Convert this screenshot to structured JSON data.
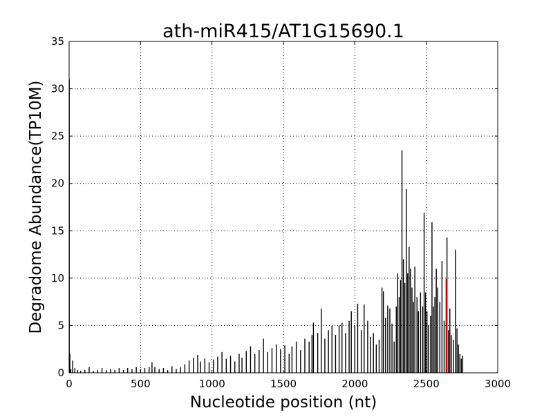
{
  "chart_data": {
    "type": "line",
    "title": "ath-miR415/AT1G15690.1",
    "xlabel": "Nucleotide position (nt)",
    "ylabel": "Degradome Abundance(TP10M)",
    "xlim": [
      0,
      3000
    ],
    "ylim": [
      0,
      35
    ],
    "xticks": [
      "0",
      "500",
      "1000",
      "1500",
      "2000",
      "2500",
      "3000"
    ],
    "yticks": [
      "0",
      "5",
      "10",
      "15",
      "20",
      "25",
      "30",
      "35"
    ],
    "grid": true,
    "series": [
      {
        "color": "#000000",
        "points": [
          [
            1,
            31.0
          ],
          [
            5,
            2.0
          ],
          [
            12,
            0.4
          ],
          [
            25,
            1.3
          ],
          [
            40,
            0.5
          ],
          [
            60,
            0.3
          ],
          [
            80,
            0.2
          ],
          [
            110,
            0.3
          ],
          [
            140,
            0.6
          ],
          [
            170,
            0.2
          ],
          [
            200,
            0.3
          ],
          [
            230,
            0.5
          ],
          [
            260,
            0.3
          ],
          [
            290,
            0.4
          ],
          [
            320,
            0.3
          ],
          [
            350,
            0.5
          ],
          [
            380,
            0.3
          ],
          [
            410,
            0.5
          ],
          [
            440,
            0.4
          ],
          [
            470,
            0.6
          ],
          [
            500,
            0.4
          ],
          [
            530,
            0.5
          ],
          [
            560,
            0.6
          ],
          [
            580,
            1.1
          ],
          [
            600,
            0.6
          ],
          [
            630,
            0.4
          ],
          [
            660,
            0.5
          ],
          [
            690,
            0.3
          ],
          [
            720,
            0.7
          ],
          [
            750,
            0.4
          ],
          [
            780,
            0.6
          ],
          [
            810,
            0.9
          ],
          [
            840,
            1.3
          ],
          [
            870,
            1.6
          ],
          [
            900,
            1.9
          ],
          [
            920,
            1.2
          ],
          [
            950,
            1.5
          ],
          [
            980,
            1.1
          ],
          [
            1010,
            1.4
          ],
          [
            1040,
            1.7
          ],
          [
            1070,
            2.2
          ],
          [
            1100,
            1.5
          ],
          [
            1130,
            1.8
          ],
          [
            1160,
            1.2
          ],
          [
            1190,
            2.0
          ],
          [
            1210,
            1.6
          ],
          [
            1240,
            2.3
          ],
          [
            1270,
            2.8
          ],
          [
            1300,
            2.0
          ],
          [
            1330,
            2.4
          ],
          [
            1360,
            3.6
          ],
          [
            1390,
            2.2
          ],
          [
            1420,
            2.6
          ],
          [
            1450,
            3.0
          ],
          [
            1480,
            2.5
          ],
          [
            1510,
            2.9
          ],
          [
            1540,
            2.0
          ],
          [
            1560,
            2.8
          ],
          [
            1590,
            3.3
          ],
          [
            1620,
            2.4
          ],
          [
            1650,
            3.6
          ],
          [
            1680,
            3.3
          ],
          [
            1700,
            4.0
          ],
          [
            1710,
            5.3
          ],
          [
            1740,
            4.2
          ],
          [
            1765,
            6.8
          ],
          [
            1790,
            3.6
          ],
          [
            1815,
            4.5
          ],
          [
            1840,
            5.0
          ],
          [
            1865,
            4.0
          ],
          [
            1890,
            5.0
          ],
          [
            1910,
            5.3
          ],
          [
            1935,
            4.2
          ],
          [
            1960,
            5.5
          ],
          [
            1975,
            6.5
          ],
          [
            2000,
            5.0
          ],
          [
            2020,
            7.3
          ],
          [
            2045,
            4.5
          ],
          [
            2065,
            7.2
          ],
          [
            2090,
            5.5
          ],
          [
            2110,
            3.8
          ],
          [
            2130,
            4.2
          ],
          [
            2150,
            3.0
          ],
          [
            2170,
            3.5
          ],
          [
            2190,
            9.0
          ],
          [
            2200,
            8.6
          ],
          [
            2215,
            5.8
          ],
          [
            2230,
            7.1
          ],
          [
            2245,
            6.8
          ],
          [
            2260,
            5.2
          ],
          [
            2275,
            3.3
          ],
          [
            2290,
            7.0
          ],
          [
            2300,
            10.5
          ],
          [
            2310,
            8.0
          ],
          [
            2320,
            9.8
          ],
          [
            2330,
            23.5
          ],
          [
            2340,
            12.0
          ],
          [
            2350,
            9.5
          ],
          [
            2360,
            19.4
          ],
          [
            2370,
            10.5
          ],
          [
            2380,
            13.3
          ],
          [
            2390,
            11.0
          ],
          [
            2400,
            9.0
          ],
          [
            2410,
            7.5
          ],
          [
            2420,
            11.2
          ],
          [
            2435,
            8.0
          ],
          [
            2445,
            6.5
          ],
          [
            2460,
            8.5
          ],
          [
            2475,
            7.0
          ],
          [
            2485,
            16.9
          ],
          [
            2495,
            8.5
          ],
          [
            2505,
            6.5
          ],
          [
            2515,
            5.0
          ],
          [
            2530,
            6.0
          ],
          [
            2540,
            15.9
          ],
          [
            2550,
            7.0
          ],
          [
            2560,
            8.0
          ],
          [
            2570,
            11.0
          ],
          [
            2580,
            9.0
          ],
          [
            2595,
            7.5
          ],
          [
            2610,
            11.8
          ],
          [
            2625,
            5.5
          ],
          [
            2645,
            14.3
          ],
          [
            2655,
            4.5
          ],
          [
            2665,
            6.8
          ],
          [
            2675,
            4.0
          ],
          [
            2690,
            3.5
          ],
          [
            2705,
            13.0
          ],
          [
            2715,
            4.7
          ],
          [
            2725,
            3.0
          ],
          [
            2735,
            2.0
          ],
          [
            2745,
            1.5
          ],
          [
            2755,
            1.8
          ]
        ]
      },
      {
        "color": "#ff0000",
        "points": [
          [
            2640,
            9.9
          ]
        ]
      }
    ]
  }
}
